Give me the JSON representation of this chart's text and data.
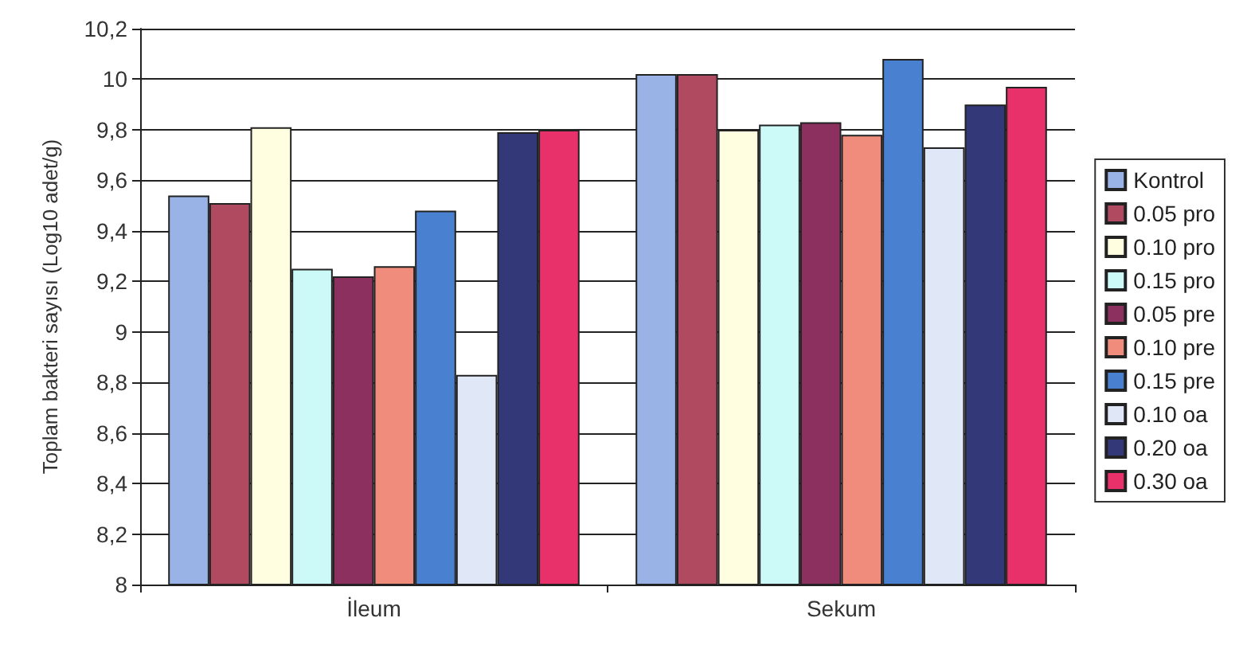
{
  "chart_data": {
    "type": "bar",
    "ylabel": "Toplam bakteri sayısı (Log10 adet/g)",
    "categories": [
      "İleum",
      "Sekum"
    ],
    "series": [
      {
        "name": "Kontrol",
        "color": "#99b3e6",
        "values": [
          9.54,
          10.02
        ]
      },
      {
        "name": "0.05 pro",
        "color": "#b04a60",
        "values": [
          9.51,
          10.02
        ]
      },
      {
        "name": "0.10 pro",
        "color": "#fffee0",
        "values": [
          9.81,
          9.8
        ]
      },
      {
        "name": "0.15 pro",
        "color": "#ccfaf8",
        "values": [
          9.25,
          9.82
        ]
      },
      {
        "name": "0.05 pre",
        "color": "#8c3060",
        "values": [
          9.22,
          9.83
        ]
      },
      {
        "name": "0.10 pre",
        "color": "#f08c7c",
        "values": [
          9.26,
          9.78
        ]
      },
      {
        "name": "0.15 pre",
        "color": "#4a80d0",
        "values": [
          9.48,
          10.08
        ]
      },
      {
        "name": "0.10 oa",
        "color": "#e0e8f8",
        "values": [
          8.83,
          9.73
        ]
      },
      {
        "name": "0.20 oa",
        "color": "#333878",
        "values": [
          9.79,
          9.9
        ]
      },
      {
        "name": "0.30 oa",
        "color": "#e8306a",
        "values": [
          9.8,
          9.97
        ]
      }
    ],
    "ylim": [
      8,
      10.2
    ],
    "yticks": [
      8,
      {
        "value": 8.2,
        "label": "8,2"
      },
      {
        "value": 8.4,
        "label": "8,4"
      },
      {
        "value": 8.6,
        "label": "8,6"
      },
      {
        "value": 8.8,
        "label": "8,8"
      },
      9,
      {
        "value": 9.2,
        "label": "9,2"
      },
      {
        "value": 9.4,
        "label": "9,4"
      },
      {
        "value": 9.6,
        "label": "9,6"
      },
      {
        "value": 9.8,
        "label": "9,8"
      },
      10,
      {
        "value": 10.2,
        "label": "10,2"
      }
    ],
    "grid": "y",
    "legend": "right"
  }
}
